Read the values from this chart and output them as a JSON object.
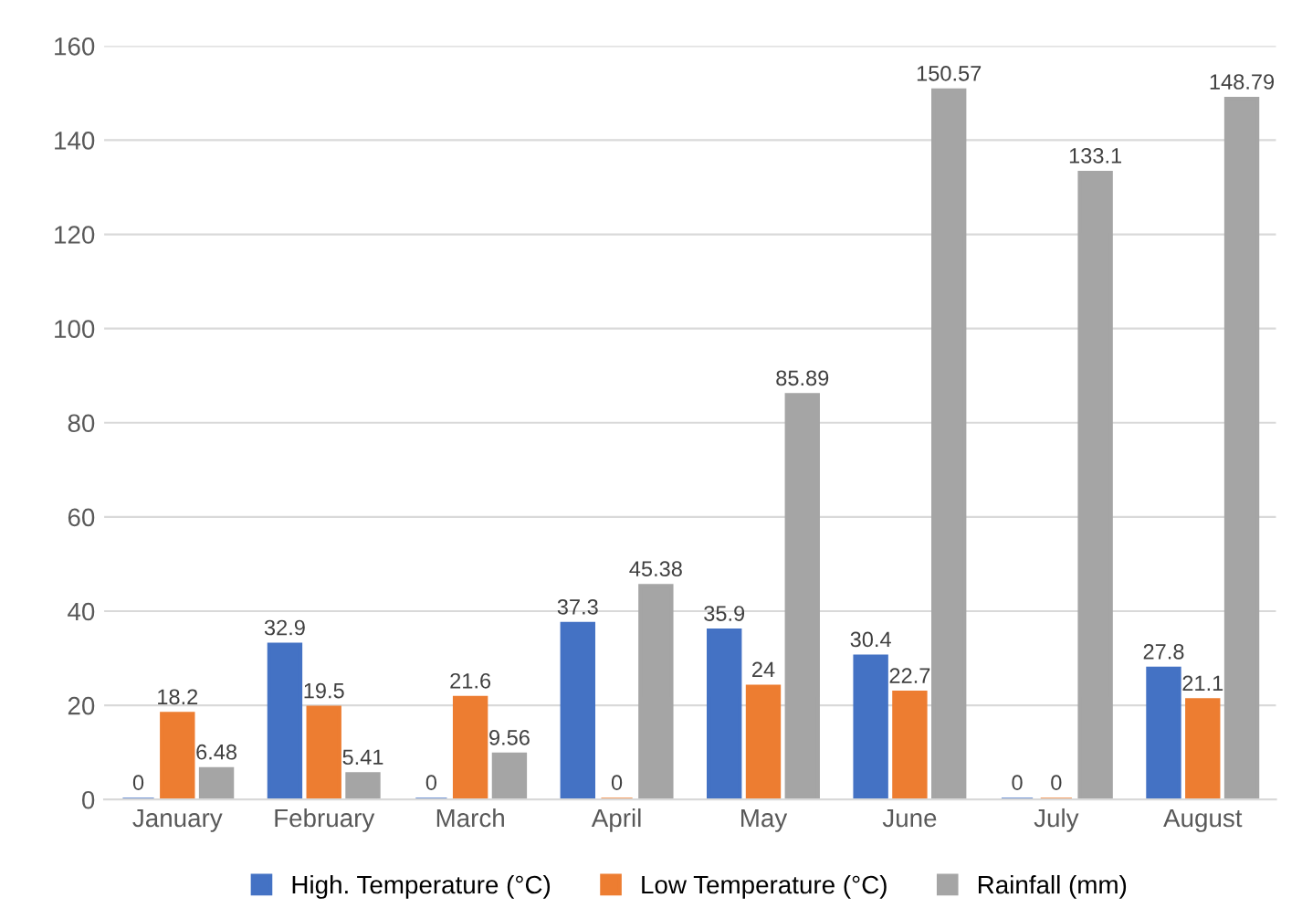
{
  "chart_data": {
    "type": "bar",
    "categories": [
      "January",
      "February",
      "March",
      "April",
      "May",
      "June",
      "July",
      "August"
    ],
    "series": [
      {
        "name": "High. Temperature (°C)",
        "color": "#4472c4",
        "values": [
          0,
          32.9,
          0,
          37.3,
          35.9,
          30.4,
          0,
          27.8
        ]
      },
      {
        "name": "Low Temperature (°C)",
        "color": "#ed7d31",
        "values": [
          18.2,
          19.5,
          21.6,
          0,
          24,
          22.7,
          0,
          21.1
        ]
      },
      {
        "name": "Rainfall (mm)",
        "color": "#a5a5a5",
        "values": [
          6.48,
          5.41,
          9.56,
          45.38,
          85.89,
          150.57,
          133.1,
          148.79
        ]
      }
    ],
    "ylim": [
      0,
      160
    ],
    "yticks": [
      0,
      20,
      40,
      60,
      80,
      100,
      120,
      140,
      160
    ],
    "grid": "y",
    "legend": "bottom",
    "data_labels": true
  }
}
